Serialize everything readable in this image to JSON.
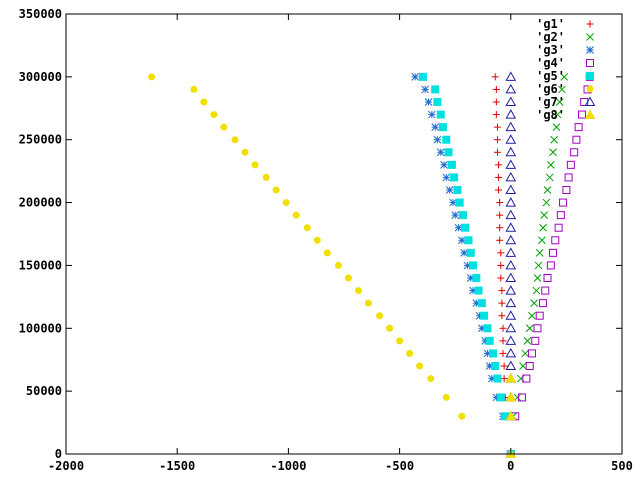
{
  "chart_data": {
    "type": "scatter",
    "title": "",
    "xlabel": "",
    "ylabel": "",
    "xlim": [
      -2000,
      500
    ],
    "ylim": [
      0,
      350000
    ],
    "x_ticks": [
      "-2000",
      "-1500",
      "-1000",
      "-500",
      "0",
      "500"
    ],
    "y_ticks": [
      "0",
      "50000",
      "100000",
      "150000",
      "200000",
      "250000",
      "300000",
      "350000"
    ],
    "grid": false,
    "legend_position": "top-right",
    "series": [
      {
        "name": "'g1'",
        "color": "#e00000",
        "marker": "plus",
        "points": [
          [
            -5,
            0
          ],
          [
            -15,
            30000
          ],
          [
            -25,
            45000
          ],
          [
            -30,
            60000
          ],
          [
            -30,
            70000
          ],
          [
            -35,
            80000
          ],
          [
            -35,
            90000
          ],
          [
            -35,
            100000
          ],
          [
            -40,
            110000
          ],
          [
            -40,
            120000
          ],
          [
            -40,
            130000
          ],
          [
            -45,
            140000
          ],
          [
            -45,
            150000
          ],
          [
            -45,
            160000
          ],
          [
            -50,
            170000
          ],
          [
            -50,
            180000
          ],
          [
            -50,
            190000
          ],
          [
            -50,
            200000
          ],
          [
            -55,
            210000
          ],
          [
            -55,
            220000
          ],
          [
            -55,
            230000
          ],
          [
            -60,
            240000
          ],
          [
            -60,
            250000
          ],
          [
            -60,
            260000
          ],
          [
            -65,
            270000
          ],
          [
            -65,
            280000
          ],
          [
            -65,
            290000
          ],
          [
            -70,
            300000
          ]
        ]
      },
      {
        "name": "'g2'",
        "color": "#00a000",
        "marker": "cross",
        "points": [
          [
            0,
            0
          ],
          [
            10,
            30000
          ],
          [
            30,
            45000
          ],
          [
            45,
            60000
          ],
          [
            55,
            70000
          ],
          [
            65,
            80000
          ],
          [
            75,
            90000
          ],
          [
            85,
            100000
          ],
          [
            95,
            110000
          ],
          [
            105,
            120000
          ],
          [
            115,
            130000
          ],
          [
            120,
            140000
          ],
          [
            125,
            150000
          ],
          [
            130,
            160000
          ],
          [
            140,
            170000
          ],
          [
            145,
            180000
          ],
          [
            150,
            190000
          ],
          [
            160,
            200000
          ],
          [
            165,
            210000
          ],
          [
            175,
            220000
          ],
          [
            180,
            230000
          ],
          [
            190,
            240000
          ],
          [
            195,
            250000
          ],
          [
            205,
            260000
          ],
          [
            210,
            270000
          ],
          [
            220,
            280000
          ],
          [
            230,
            290000
          ],
          [
            240,
            300000
          ]
        ]
      },
      {
        "name": "'g3'",
        "color": "#1a6ad0",
        "marker": "star",
        "points": [
          [
            0,
            0
          ],
          [
            -35,
            30000
          ],
          [
            -65,
            45000
          ],
          [
            -85,
            60000
          ],
          [
            -95,
            70000
          ],
          [
            -105,
            80000
          ],
          [
            -115,
            90000
          ],
          [
            -130,
            100000
          ],
          [
            -140,
            110000
          ],
          [
            -155,
            120000
          ],
          [
            -170,
            130000
          ],
          [
            -180,
            140000
          ],
          [
            -195,
            150000
          ],
          [
            -210,
            160000
          ],
          [
            -220,
            170000
          ],
          [
            -235,
            180000
          ],
          [
            -250,
            190000
          ],
          [
            -260,
            200000
          ],
          [
            -275,
            210000
          ],
          [
            -290,
            220000
          ],
          [
            -300,
            230000
          ],
          [
            -315,
            240000
          ],
          [
            -330,
            250000
          ],
          [
            -340,
            260000
          ],
          [
            -355,
            270000
          ],
          [
            -370,
            280000
          ],
          [
            -385,
            290000
          ],
          [
            -430,
            300000
          ]
        ]
      },
      {
        "name": "'g4'",
        "color": "#a000c0",
        "marker": "open-square",
        "points": [
          [
            0,
            0
          ],
          [
            20,
            30000
          ],
          [
            50,
            45000
          ],
          [
            70,
            60000
          ],
          [
            85,
            70000
          ],
          [
            95,
            80000
          ],
          [
            110,
            90000
          ],
          [
            120,
            100000
          ],
          [
            130,
            110000
          ],
          [
            145,
            120000
          ],
          [
            155,
            130000
          ],
          [
            165,
            140000
          ],
          [
            180,
            150000
          ],
          [
            190,
            160000
          ],
          [
            200,
            170000
          ],
          [
            215,
            180000
          ],
          [
            225,
            190000
          ],
          [
            235,
            200000
          ],
          [
            250,
            210000
          ],
          [
            260,
            220000
          ],
          [
            270,
            230000
          ],
          [
            285,
            240000
          ],
          [
            295,
            250000
          ],
          [
            305,
            260000
          ],
          [
            320,
            270000
          ],
          [
            330,
            280000
          ],
          [
            345,
            290000
          ],
          [
            355,
            300000
          ]
        ]
      },
      {
        "name": "'g5'",
        "color": "#00e0e0",
        "marker": "filled-square",
        "points": [
          [
            0,
            0
          ],
          [
            -25,
            30000
          ],
          [
            -45,
            45000
          ],
          [
            -60,
            60000
          ],
          [
            -70,
            70000
          ],
          [
            -80,
            80000
          ],
          [
            -95,
            90000
          ],
          [
            -105,
            100000
          ],
          [
            -120,
            110000
          ],
          [
            -130,
            120000
          ],
          [
            -145,
            130000
          ],
          [
            -155,
            140000
          ],
          [
            -170,
            150000
          ],
          [
            -180,
            160000
          ],
          [
            -190,
            170000
          ],
          [
            -205,
            180000
          ],
          [
            -215,
            190000
          ],
          [
            -230,
            200000
          ],
          [
            -240,
            210000
          ],
          [
            -255,
            220000
          ],
          [
            -265,
            230000
          ],
          [
            -280,
            240000
          ],
          [
            -290,
            250000
          ],
          [
            -305,
            260000
          ],
          [
            -315,
            270000
          ],
          [
            -330,
            280000
          ],
          [
            -340,
            290000
          ],
          [
            -395,
            300000
          ]
        ]
      },
      {
        "name": "'g6'",
        "color": "#f0e000",
        "marker": "filled-circle",
        "points": [
          [
            -220,
            30000
          ],
          [
            -290,
            45000
          ],
          [
            -360,
            60000
          ],
          [
            -410,
            70000
          ],
          [
            -455,
            80000
          ],
          [
            -500,
            90000
          ],
          [
            -545,
            100000
          ],
          [
            -590,
            110000
          ],
          [
            -640,
            120000
          ],
          [
            -685,
            130000
          ],
          [
            -730,
            140000
          ],
          [
            -775,
            150000
          ],
          [
            -825,
            160000
          ],
          [
            -870,
            170000
          ],
          [
            -915,
            180000
          ],
          [
            -965,
            190000
          ],
          [
            -1010,
            200000
          ],
          [
            -1055,
            210000
          ],
          [
            -1100,
            220000
          ],
          [
            -1150,
            230000
          ],
          [
            -1195,
            240000
          ],
          [
            -1240,
            250000
          ],
          [
            -1290,
            260000
          ],
          [
            -1335,
            270000
          ],
          [
            -1380,
            280000
          ],
          [
            -1425,
            290000
          ],
          [
            -1615,
            300000
          ]
        ]
      },
      {
        "name": "'g7'",
        "color": "#2020a0",
        "marker": "open-triangle",
        "points": [
          [
            0,
            0
          ],
          [
            0,
            30000
          ],
          [
            0,
            45000
          ],
          [
            0,
            60000
          ],
          [
            0,
            70000
          ],
          [
            0,
            80000
          ],
          [
            0,
            90000
          ],
          [
            0,
            100000
          ],
          [
            0,
            110000
          ],
          [
            0,
            120000
          ],
          [
            0,
            130000
          ],
          [
            0,
            140000
          ],
          [
            0,
            150000
          ],
          [
            0,
            160000
          ],
          [
            0,
            170000
          ],
          [
            0,
            180000
          ],
          [
            0,
            190000
          ],
          [
            0,
            200000
          ],
          [
            0,
            210000
          ],
          [
            0,
            220000
          ],
          [
            0,
            230000
          ],
          [
            0,
            240000
          ],
          [
            0,
            250000
          ],
          [
            0,
            260000
          ],
          [
            0,
            270000
          ],
          [
            0,
            280000
          ],
          [
            0,
            290000
          ],
          [
            0,
            300000
          ]
        ]
      },
      {
        "name": "'g8'",
        "color": "#f0e000",
        "marker": "filled-triangle",
        "points": [
          [
            0,
            0
          ],
          [
            0,
            30000
          ],
          [
            0,
            45000
          ],
          [
            0,
            60000
          ]
        ]
      }
    ]
  }
}
